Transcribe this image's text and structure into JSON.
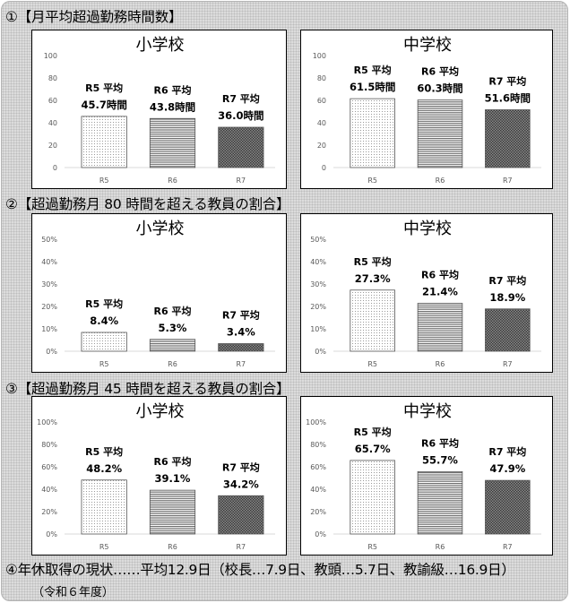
{
  "sections": [
    {
      "title": "①【月平均超過勤務時間数】"
    },
    {
      "title": "②【超過勤務月 80 時間を超える教員の割合】"
    },
    {
      "title": "③【超過勤務月 45 時間を超える教員の割合】"
    }
  ],
  "footer": {
    "line1": "④年休取得の現状……平均12.9日（校長…7.9日、教頭…5.7日、教諭級…16.9日）",
    "line2": "（令和６年度）"
  },
  "colors": {
    "background": "#dcdcdc",
    "bar_outline": "#555555",
    "axis": "#d9d9d9",
    "tick_text": "#595959"
  },
  "chart_data": [
    {
      "type": "bar",
      "section": 1,
      "title": "小学校",
      "categories": [
        "R5",
        "R6",
        "R7"
      ],
      "values": [
        45.7,
        43.8,
        36.0
      ],
      "data_labels": [
        [
          "R5 平均",
          "45.7時間"
        ],
        [
          "R6 平均",
          "43.8時間"
        ],
        [
          "R7 平均",
          "36.0時間"
        ]
      ],
      "ylim": [
        0,
        100
      ],
      "yticks": [
        "0",
        "20",
        "40",
        "60",
        "80",
        "100"
      ],
      "grid": false,
      "patterns": [
        "dots",
        "hlines",
        "crosshatch"
      ]
    },
    {
      "type": "bar",
      "section": 1,
      "title": "中学校",
      "categories": [
        "R5",
        "R6",
        "R7"
      ],
      "values": [
        61.5,
        60.3,
        51.6
      ],
      "data_labels": [
        [
          "R5 平均",
          "61.5時間"
        ],
        [
          "R6 平均",
          "60.3時間"
        ],
        [
          "R7 平均",
          "51.6時間"
        ]
      ],
      "ylim": [
        0,
        100
      ],
      "yticks": [
        "0",
        "20",
        "40",
        "60",
        "80",
        "100"
      ],
      "grid": false,
      "patterns": [
        "dots",
        "hlines",
        "crosshatch"
      ]
    },
    {
      "type": "bar",
      "section": 2,
      "title": "小学校",
      "categories": [
        "R5",
        "R6",
        "R7"
      ],
      "values": [
        8.4,
        5.3,
        3.4
      ],
      "data_labels": [
        [
          "R5 平均",
          "8.4%"
        ],
        [
          "R6 平均",
          "5.3%"
        ],
        [
          "R7 平均",
          "3.4%"
        ]
      ],
      "ylim": [
        0,
        50
      ],
      "yticks": [
        "0%",
        "10%",
        "20%",
        "30%",
        "40%",
        "50%"
      ],
      "grid": false,
      "patterns": [
        "dots",
        "hlines",
        "crosshatch"
      ]
    },
    {
      "type": "bar",
      "section": 2,
      "title": "中学校",
      "categories": [
        "R5",
        "R6",
        "R7"
      ],
      "values": [
        27.3,
        21.4,
        18.9
      ],
      "data_labels": [
        [
          "R5 平均",
          "27.3%"
        ],
        [
          "R6 平均",
          "21.4%"
        ],
        [
          "R7 平均",
          "18.9%"
        ]
      ],
      "ylim": [
        0,
        50
      ],
      "yticks": [
        "0%",
        "10%",
        "20%",
        "30%",
        "40%",
        "50%"
      ],
      "grid": false,
      "patterns": [
        "dots",
        "hlines",
        "crosshatch"
      ]
    },
    {
      "type": "bar",
      "section": 3,
      "title": "小学校",
      "categories": [
        "R5",
        "R6",
        "R7"
      ],
      "values": [
        48.2,
        39.1,
        34.2
      ],
      "data_labels": [
        [
          "R5 平均",
          "48.2%"
        ],
        [
          "R6 平均",
          "39.1%"
        ],
        [
          "R7 平均",
          "34.2%"
        ]
      ],
      "ylim": [
        0,
        100
      ],
      "yticks": [
        "0%",
        "20%",
        "40%",
        "60%",
        "80%",
        "100%"
      ],
      "grid": false,
      "patterns": [
        "dots",
        "hlines",
        "crosshatch"
      ]
    },
    {
      "type": "bar",
      "section": 3,
      "title": "中学校",
      "categories": [
        "R5",
        "R6",
        "R7"
      ],
      "values": [
        65.7,
        55.7,
        47.9
      ],
      "data_labels": [
        [
          "R5 平均",
          "65.7%"
        ],
        [
          "R6 平均",
          "55.7%"
        ],
        [
          "R7 平均",
          "47.9%"
        ]
      ],
      "ylim": [
        0,
        100
      ],
      "yticks": [
        "0%",
        "20%",
        "40%",
        "60%",
        "80%",
        "100%"
      ],
      "grid": false,
      "patterns": [
        "dots",
        "hlines",
        "crosshatch"
      ]
    }
  ]
}
